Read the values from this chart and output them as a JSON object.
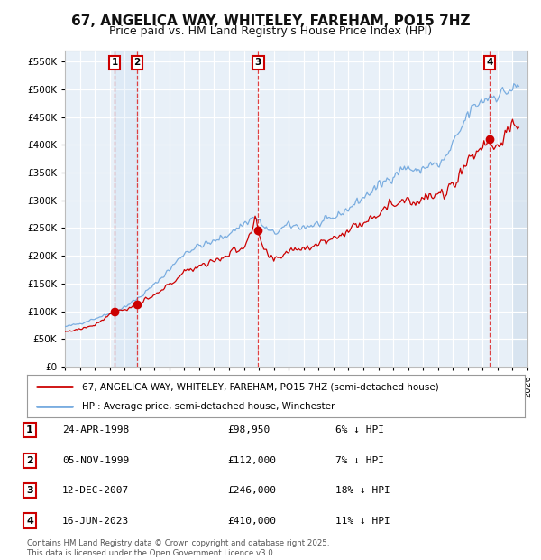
{
  "title": "67, ANGELICA WAY, WHITELEY, FAREHAM, PO15 7HZ",
  "subtitle": "Price paid vs. HM Land Registry's House Price Index (HPI)",
  "ytick_values": [
    0,
    50000,
    100000,
    150000,
    200000,
    250000,
    300000,
    350000,
    400000,
    450000,
    500000,
    550000
  ],
  "xmin": 1995,
  "xmax": 2026,
  "ymin": 0,
  "ymax": 570000,
  "sale_dates": [
    1998.32,
    1999.84,
    2007.95,
    2023.46
  ],
  "sale_prices": [
    98950,
    112000,
    246000,
    410000
  ],
  "sale_labels": [
    "1",
    "2",
    "3",
    "4"
  ],
  "legend_line1": "67, ANGELICA WAY, WHITELEY, FAREHAM, PO15 7HZ (semi-detached house)",
  "legend_line2": "HPI: Average price, semi-detached house, Winchester",
  "table_entries": [
    {
      "num": "1",
      "date": "24-APR-1998",
      "price": "£98,950",
      "hpi": "6% ↓ HPI"
    },
    {
      "num": "2",
      "date": "05-NOV-1999",
      "price": "£112,000",
      "hpi": "7% ↓ HPI"
    },
    {
      "num": "3",
      "date": "12-DEC-2007",
      "price": "£246,000",
      "hpi": "18% ↓ HPI"
    },
    {
      "num": "4",
      "date": "16-JUN-2023",
      "price": "£410,000",
      "hpi": "11% ↓ HPI"
    }
  ],
  "footer": "Contains HM Land Registry data © Crown copyright and database right 2025.\nThis data is licensed under the Open Government Licence v3.0.",
  "red_color": "#cc0000",
  "blue_color": "#7aade0",
  "plot_bg": "#e8f0f8",
  "grid_color": "#ffffff",
  "title_fontsize": 11,
  "subtitle_fontsize": 9
}
